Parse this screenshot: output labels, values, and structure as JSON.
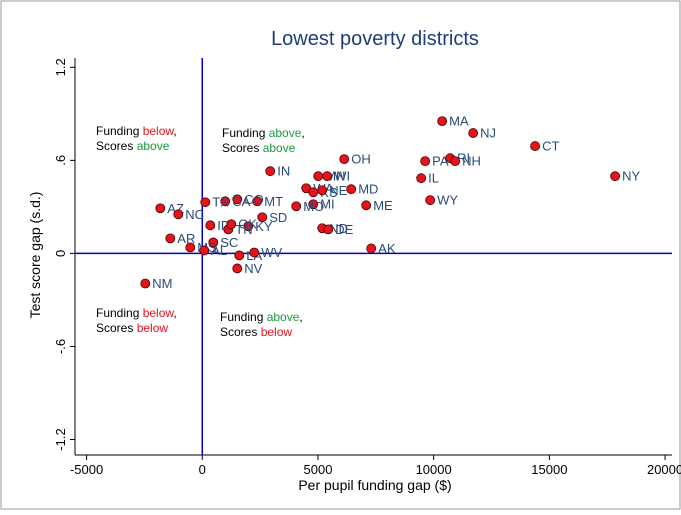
{
  "chart_data": {
    "type": "scatter",
    "title": "Lowest poverty districts",
    "x_label": "Per pupil funding gap ($)",
    "y_label": "Test score gap (s.d.)",
    "xlim": [
      -5500,
      20300
    ],
    "ylim": [
      -1.3,
      1.26
    ],
    "xticks": [
      -5000,
      0,
      5000,
      10000,
      15000,
      20000
    ],
    "yticks": [
      -1.2,
      {
        "value": -0.6,
        "label": "-.6"
      },
      0,
      {
        "value": 0.6,
        "label": ".6"
      },
      1.2
    ],
    "reference_x": [
      0
    ],
    "reference_y": [
      0
    ],
    "reference_color": "#0000cc",
    "color": "#e8121b",
    "label_color": "#2a4a7a",
    "labels": [
      "MA",
      "NJ",
      "CT",
      "NY",
      "OH",
      "PA",
      "RI",
      "NH",
      "IL",
      "WY",
      "MD",
      "ME",
      "AK",
      "IN",
      "MN",
      "WI",
      "WA",
      "KS",
      "NE",
      "MI",
      "MO",
      "MT",
      "CO",
      "CA",
      "TX",
      "SD",
      "KY",
      "TN",
      "ID",
      "OK",
      "ND",
      "DE",
      "AZ",
      "NC",
      "SC",
      "AR",
      "MS",
      "AL",
      "LA",
      "WV",
      "NV",
      "NM"
    ],
    "x": [
      10367,
      11706,
      14384,
      17840,
      6134,
      9633,
      10713,
      10929,
      9460,
      9849,
      6436,
      7084,
      7300,
      2937,
      5011,
      5400,
      4492,
      4795,
      5184,
      4795,
      4060,
      2376,
      1512,
      993,
      130,
      2592,
      1987,
      1123,
      346,
      1252,
      5184,
      5443,
      -1814,
      -1037,
      475,
      -1382,
      -518,
      86,
      1598,
      2246,
      1512,
      -2462
    ],
    "values": [
      0.853,
      0.776,
      0.692,
      0.498,
      0.608,
      0.595,
      0.614,
      0.595,
      0.485,
      0.343,
      0.414,
      0.31,
      0.032,
      0.53,
      0.498,
      0.498,
      0.42,
      0.394,
      0.407,
      0.317,
      0.304,
      0.336,
      0.349,
      0.336,
      0.33,
      0.233,
      0.175,
      0.155,
      0.181,
      0.188,
      0.162,
      0.155,
      0.291,
      0.252,
      0.071,
      0.097,
      0.039,
      0.019,
      -0.013,
      0.006,
      -0.097,
      -0.194
    ],
    "annotations": [
      {
        "line1": [
          "Funding ",
          "below",
          ","
        ],
        "line2": [
          "Scores ",
          "above"
        ],
        "color": "#e8121b",
        "color2": "#1a9a3a"
      },
      {
        "line1": [
          "Funding ",
          "above",
          ","
        ],
        "line2": [
          "Scores ",
          "above"
        ],
        "color": "#1a9a3a",
        "color2": "#1a9a3a"
      },
      {
        "line1": [
          "Funding ",
          "below",
          ","
        ],
        "line2": [
          "Scores ",
          "below"
        ],
        "color": "#e8121b",
        "color2": "#e8121b"
      },
      {
        "line1": [
          "Funding ",
          "above",
          ","
        ],
        "line2": [
          "Scores ",
          "below"
        ],
        "color": "#1a9a3a",
        "color2": "#e8121b"
      }
    ]
  }
}
